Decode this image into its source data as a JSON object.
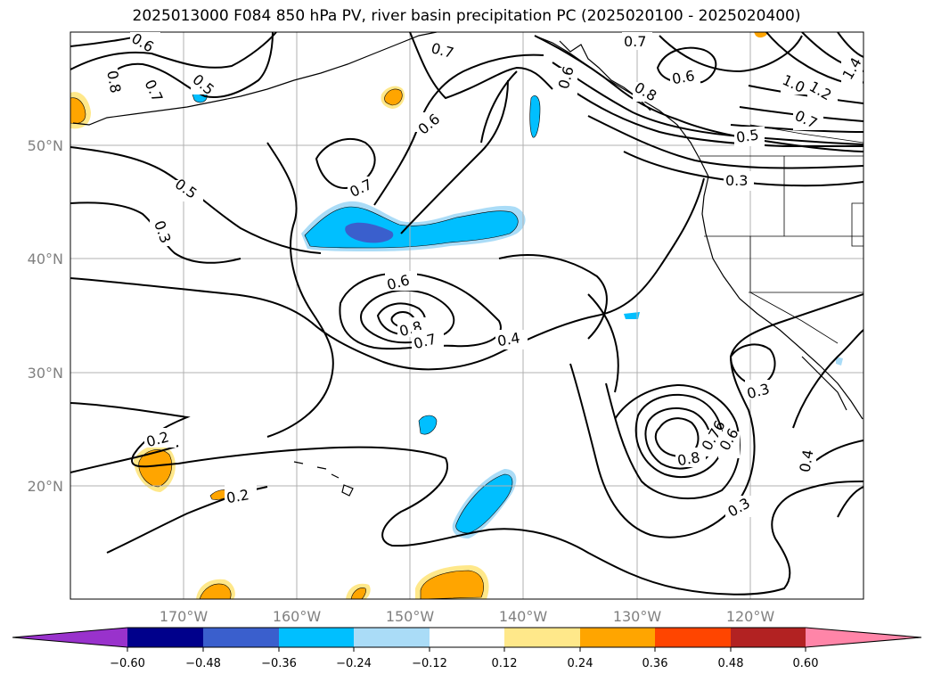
{
  "title": "2025013000 F084 850 hPa PV, river basin precipitation PC (2025020100 - 2025020400)",
  "map": {
    "lat_labels": [
      "50°N",
      "40°N",
      "30°N",
      "20°N"
    ],
    "lon_labels": [
      "170°W",
      "160°W",
      "150°W",
      "140°W",
      "130°W",
      "120°W"
    ],
    "gridline_color": "#b0b0b0",
    "tick_label_color": "#808080"
  },
  "contour_labels": [
    "0.6",
    "0.8",
    "0.7",
    "0.5",
    "0.7",
    "0.6",
    "0.6",
    "0.7",
    "0.8",
    "0.6",
    "1.0",
    "1.2",
    "1.4",
    "0.7",
    "0.5",
    "0.5",
    "0.3",
    "0.7",
    "0.3",
    "0.6",
    "0.8",
    "0.7",
    "0.4",
    "0.3",
    "0.2",
    "0.2",
    "0.8",
    "0.76",
    "0.6",
    "0.3",
    "0.4"
  ],
  "colorbar": {
    "tick_labels": [
      "−0.60",
      "−0.48",
      "−0.36",
      "−0.24",
      "−0.12",
      "0.12",
      "0.24",
      "0.36",
      "0.48",
      "0.60"
    ],
    "colors": [
      "#9932cc",
      "#00008b",
      "#3a5fcd",
      "#00bfff",
      "#aadcf7",
      "#ffffff",
      "#ffe88a",
      "#ffa500",
      "#ff4500",
      "#b22222",
      "#ff85a8"
    ],
    "levels": [
      -0.6,
      -0.48,
      -0.36,
      -0.24,
      -0.12,
      0.12,
      0.24,
      0.36,
      0.48,
      0.6
    ]
  }
}
